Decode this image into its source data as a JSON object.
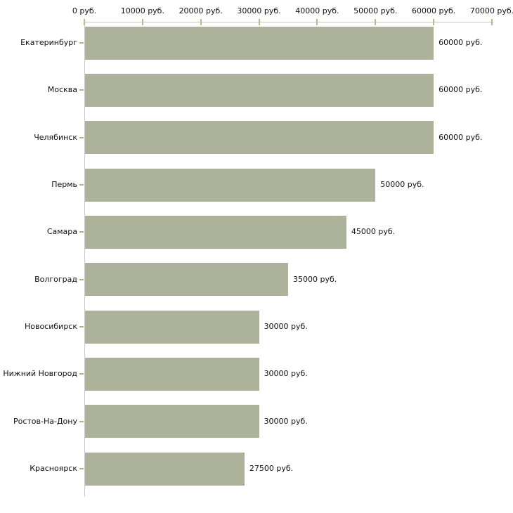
{
  "chart_data": {
    "type": "bar",
    "orientation": "horizontal",
    "title": "",
    "xlabel": "",
    "ylabel": "",
    "grid": false,
    "legend": false,
    "unit": "руб.",
    "categories": [
      "Екатеринбург",
      "Москва",
      "Челябинск",
      "Пермь",
      "Самара",
      "Волгоград",
      "Новосибирск",
      "Нижний Новгород",
      "Ростов-На-Дону",
      "Красноярск"
    ],
    "values": [
      60000,
      60000,
      60000,
      50000,
      45000,
      35000,
      30000,
      30000,
      30000,
      27500
    ],
    "value_labels": [
      "60000 руб.",
      "60000 руб.",
      "60000 руб.",
      "50000 руб.",
      "45000 руб.",
      "35000 руб.",
      "30000 руб.",
      "30000 руб.",
      "30000 руб.",
      "27500 руб."
    ],
    "x_axis": {
      "position": "top",
      "range": [
        0,
        70000
      ],
      "tick_values": [
        0,
        10000,
        20000,
        30000,
        40000,
        50000,
        60000,
        70000
      ],
      "tick_labels": [
        "0 руб.",
        "10000 руб.",
        "20000 руб.",
        "30000 руб.",
        "40000 руб.",
        "50000 руб.",
        "60000 руб.",
        "70000 руб."
      ]
    },
    "colors": {
      "bar": "#adb39a",
      "axis_line": "#c9c9c9",
      "tick": "#b9b98e",
      "text": "#111111",
      "background": "#ffffff"
    }
  }
}
